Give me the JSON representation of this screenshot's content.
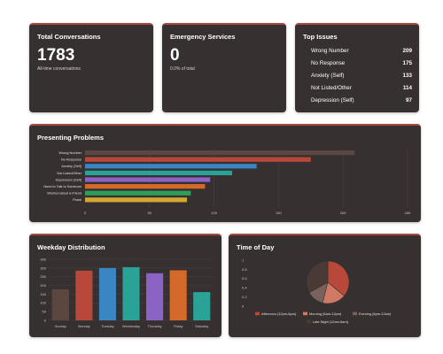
{
  "stats": {
    "total": {
      "title": "Total Conversations",
      "value": "1783",
      "subtitle": "All-time conversations"
    },
    "emergency": {
      "title": "Emergency Services",
      "value": "0",
      "subtitle": "0.0% of total"
    }
  },
  "top_issues": {
    "title": "Top Issues",
    "items": [
      {
        "label": "Wrong Number",
        "count": "209"
      },
      {
        "label": "No Response",
        "count": "175"
      },
      {
        "label": "Anxiety (Self)",
        "count": "133"
      },
      {
        "label": "Not Listed/Other",
        "count": "114"
      },
      {
        "label": "Depression (Self)",
        "count": "97"
      }
    ]
  },
  "colors": {
    "card_bg": "#363030",
    "accent": "#a3493d"
  },
  "chart_data": [
    {
      "type": "bar",
      "orientation": "horizontal",
      "title": "Presenting Problems",
      "categories": [
        "Wrong Number",
        "No Response",
        "Anxiety (Self)",
        "Not Listed/Other",
        "Depression (Self)",
        "Need to Talk to Someone",
        "Worried about a Friend",
        "Prank"
      ],
      "values": [
        209,
        175,
        133,
        114,
        97,
        93,
        82,
        79
      ],
      "colors": [
        "#5b4640",
        "#b8493a",
        "#3a86c2",
        "#2aa295",
        "#8a63c4",
        "#d36a2a",
        "#2f9e5a",
        "#d4a733"
      ],
      "xlim": [
        0,
        250
      ],
      "xticks": [
        "0",
        "50",
        "100",
        "150",
        "200",
        "250"
      ],
      "grid": true
    },
    {
      "type": "bar",
      "title": "Weekday Distribution",
      "categories": [
        "Sunday",
        "Monday",
        "Tuesday",
        "Wednesday",
        "Thursday",
        "Friday",
        "Saturday"
      ],
      "values": [
        178,
        285,
        300,
        305,
        270,
        287,
        162
      ],
      "colors": [
        "#5b4640",
        "#b8493a",
        "#3a86c2",
        "#2aa295",
        "#8a63c4",
        "#d36a2a",
        "#2aa295"
      ],
      "ylim": [
        0,
        350
      ],
      "yticks": [
        "0",
        "50",
        "100",
        "150",
        "200",
        "250",
        "300",
        "350"
      ],
      "grid": true
    },
    {
      "type": "pie",
      "title": "Time of Day",
      "categories": [
        "Afternoon (12pm-6pm)",
        "Morning (6am-12pm)",
        "Evening (6pm-12am)",
        "Late Night (12am-6am)"
      ],
      "values": [
        36,
        18,
        13,
        33
      ],
      "colors": [
        "#b8493a",
        "#d07a66",
        "#7a625c",
        "#4a3a36"
      ],
      "yticks": [
        "1",
        "0.8",
        "0.6",
        "0.4",
        "0.2",
        "0"
      ],
      "legend": "bottom"
    }
  ]
}
